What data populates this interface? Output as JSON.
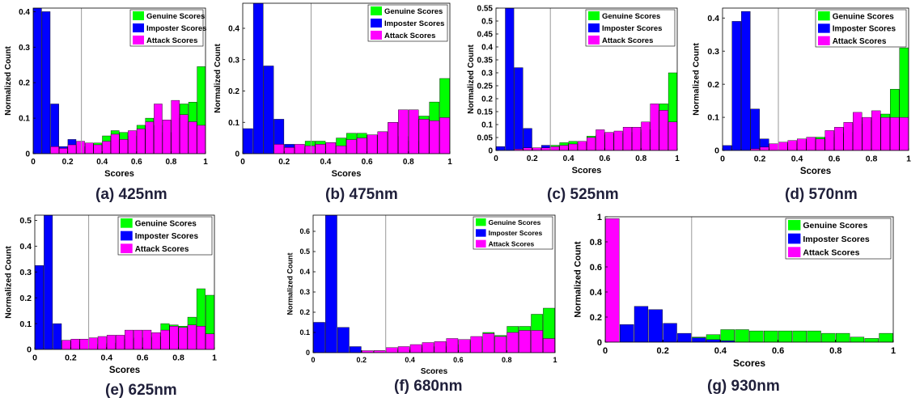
{
  "colors": {
    "genuine": "#00ff00",
    "imposter": "#0000ff",
    "attack": "#ff00ff",
    "threshold": "#999999",
    "edge": "#000000"
  },
  "chart_data": [
    {
      "type": "bar",
      "caption": "(a) 425nm",
      "xlabel": "Scores",
      "ylabel": "Normalized Count",
      "xlim": [
        0,
        1
      ],
      "ylim": [
        0,
        0.41
      ],
      "threshold": 0.28,
      "xticks": [
        0,
        0.2,
        0.4,
        0.6,
        0.8,
        1
      ],
      "xtick_labels": [
        "0",
        "0.2",
        "0.4",
        "0.6",
        "0.8",
        "1"
      ],
      "yticks": [
        0,
        0.1,
        0.2,
        0.3,
        0.4
      ],
      "ytick_labels": [
        "0",
        "0.1",
        "0.2",
        "0.3",
        "0.4"
      ],
      "legend": [
        "Genuine Scores",
        "Imposter Scores",
        "Attack Scores"
      ],
      "legend_position": "top-right",
      "bin_centers": [
        0.025,
        0.075,
        0.125,
        0.175,
        0.225,
        0.275,
        0.325,
        0.375,
        0.425,
        0.475,
        0.525,
        0.575,
        0.625,
        0.675,
        0.725,
        0.775,
        0.825,
        0.875,
        0.925,
        0.975
      ],
      "series": [
        {
          "name": "Genuine Scores",
          "values": [
            0,
            0,
            0,
            0,
            0,
            0.01,
            0.02,
            0.03,
            0.05,
            0.065,
            0.06,
            0.05,
            0.08,
            0.1,
            0.08,
            0.06,
            0.1,
            0.14,
            0.145,
            0.245
          ]
        },
        {
          "name": "Imposter Scores",
          "values": [
            0.41,
            0.4,
            0.14,
            0.02,
            0.04,
            0.02,
            0,
            0,
            0,
            0,
            0,
            0,
            0,
            0,
            0,
            0,
            0,
            0,
            0,
            0
          ]
        },
        {
          "name": "Attack Scores",
          "values": [
            0,
            0,
            0.02,
            0.015,
            0.025,
            0.035,
            0.03,
            0.025,
            0.035,
            0.055,
            0.04,
            0.065,
            0.07,
            0.09,
            0.14,
            0.095,
            0.15,
            0.11,
            0.09,
            0.08
          ]
        }
      ]
    },
    {
      "type": "bar",
      "caption": "(b) 475nm",
      "xlabel": "Scores",
      "ylabel": "Normalized Count",
      "xlim": [
        0,
        1
      ],
      "ylim": [
        0,
        0.48
      ],
      "threshold": 0.33,
      "xticks": [
        0,
        0.2,
        0.4,
        0.6,
        0.8,
        1
      ],
      "xtick_labels": [
        "0",
        "0.2",
        "0.4",
        "0.6",
        "0.8",
        "1"
      ],
      "yticks": [
        0,
        0.1,
        0.2,
        0.3,
        0.4
      ],
      "ytick_labels": [
        "0",
        "0.1",
        "0.2",
        "0.3",
        "0.4"
      ],
      "legend": [
        "Genuine Scores",
        "Imposter Scores",
        "Attack Scores"
      ],
      "legend_position": "top-right",
      "bin_centers": [
        0.025,
        0.075,
        0.125,
        0.175,
        0.225,
        0.275,
        0.325,
        0.375,
        0.425,
        0.475,
        0.525,
        0.575,
        0.625,
        0.675,
        0.725,
        0.775,
        0.825,
        0.875,
        0.925,
        0.975
      ],
      "series": [
        {
          "name": "Genuine Scores",
          "values": [
            0,
            0,
            0,
            0,
            0.01,
            0.02,
            0.04,
            0.04,
            0.035,
            0.05,
            0.065,
            0.065,
            0.06,
            0.07,
            0.1,
            0.055,
            0.04,
            0.12,
            0.165,
            0.24
          ]
        },
        {
          "name": "Imposter Scores",
          "values": [
            0.08,
            0.48,
            0.28,
            0.11,
            0.03,
            0.01,
            0,
            0,
            0,
            0,
            0,
            0,
            0,
            0,
            0,
            0,
            0,
            0,
            0,
            0
          ]
        },
        {
          "name": "Attack Scores",
          "values": [
            0,
            0,
            0,
            0.03,
            0.02,
            0.03,
            0.025,
            0.03,
            0.035,
            0.025,
            0.045,
            0.05,
            0.06,
            0.07,
            0.1,
            0.14,
            0.14,
            0.11,
            0.105,
            0.115
          ]
        }
      ]
    },
    {
      "type": "bar",
      "caption": "(c) 525nm",
      "xlabel": "Scores",
      "ylabel": "Normalized Count",
      "xlim": [
        0,
        1
      ],
      "ylim": [
        0,
        0.55
      ],
      "threshold": 0.3,
      "xticks": [
        0,
        0.2,
        0.4,
        0.6,
        0.8,
        1
      ],
      "xtick_labels": [
        "0",
        "0.2",
        "0.4",
        "0.6",
        "0.8",
        "1"
      ],
      "yticks": [
        0,
        0.05,
        0.1,
        0.15,
        0.2,
        0.25,
        0.3,
        0.35,
        0.4,
        0.45,
        0.5,
        0.55
      ],
      "ytick_labels": [
        "0",
        "0.05",
        "0.1",
        "0.15",
        "0.2",
        "0.25",
        "0.3",
        "0.35",
        "0.4",
        "0.45",
        "0.5",
        "0.55"
      ],
      "legend": [
        "Genuine Scores",
        "Imposter Scores",
        "Attack Scores"
      ],
      "legend_position": "top-right",
      "bin_centers": [
        0.025,
        0.075,
        0.125,
        0.175,
        0.225,
        0.275,
        0.325,
        0.375,
        0.425,
        0.475,
        0.525,
        0.575,
        0.625,
        0.675,
        0.725,
        0.775,
        0.825,
        0.875,
        0.925,
        0.975
      ],
      "series": [
        {
          "name": "Genuine Scores",
          "values": [
            0,
            0,
            0,
            0,
            0,
            0.01,
            0.02,
            0.03,
            0.035,
            0.03,
            0.055,
            0.06,
            0.065,
            0.065,
            0.07,
            0.07,
            0.08,
            0.08,
            0.18,
            0.3
          ]
        },
        {
          "name": "Imposter Scores",
          "values": [
            0.015,
            0.55,
            0.32,
            0.085,
            0.01,
            0.02,
            0,
            0,
            0,
            0,
            0,
            0,
            0,
            0,
            0,
            0,
            0,
            0,
            0,
            0
          ]
        },
        {
          "name": "Attack Scores",
          "values": [
            0,
            0,
            0.005,
            0.01,
            0.01,
            0.01,
            0.015,
            0.02,
            0.025,
            0.035,
            0.05,
            0.08,
            0.07,
            0.075,
            0.09,
            0.09,
            0.11,
            0.18,
            0.155,
            0.11
          ]
        }
      ]
    },
    {
      "type": "bar",
      "caption": "(d) 570nm",
      "xlabel": "Scores",
      "ylabel": "Normalized Count",
      "xlim": [
        0,
        1
      ],
      "ylim": [
        0,
        0.43
      ],
      "threshold": 0.3,
      "xticks": [
        0,
        0.2,
        0.4,
        0.6,
        0.8,
        1
      ],
      "xtick_labels": [
        "0",
        "0.2",
        "0.4",
        "0.6",
        "0.8",
        "1"
      ],
      "yticks": [
        0,
        0.1,
        0.2,
        0.3,
        0.4
      ],
      "ytick_labels": [
        "0",
        "0.1",
        "0.2",
        "0.3",
        "0.4"
      ],
      "legend": [
        "Genuine Scores",
        "Imposter Scores",
        "Attack Scores"
      ],
      "legend_position": "top-right",
      "bin_centers": [
        0.025,
        0.075,
        0.125,
        0.175,
        0.225,
        0.275,
        0.325,
        0.375,
        0.425,
        0.475,
        0.525,
        0.575,
        0.625,
        0.675,
        0.725,
        0.775,
        0.825,
        0.875,
        0.925,
        0.975
      ],
      "series": [
        {
          "name": "Genuine Scores",
          "values": [
            0,
            0,
            0,
            0,
            0,
            0.005,
            0.01,
            0.02,
            0.025,
            0.03,
            0.04,
            0.04,
            0.05,
            0.055,
            0.08,
            0.09,
            0.1,
            0.11,
            0.185,
            0.31
          ]
        },
        {
          "name": "Imposter Scores",
          "values": [
            0.015,
            0.39,
            0.42,
            0.125,
            0.035,
            0.005,
            0,
            0,
            0,
            0,
            0,
            0,
            0,
            0,
            0,
            0,
            0,
            0,
            0,
            0
          ]
        },
        {
          "name": "Attack Scores",
          "values": [
            0,
            0,
            0,
            0.005,
            0.01,
            0.02,
            0.025,
            0.03,
            0.035,
            0.04,
            0.035,
            0.06,
            0.07,
            0.085,
            0.115,
            0.1,
            0.12,
            0.1,
            0.1,
            0.1
          ]
        }
      ]
    },
    {
      "type": "bar",
      "caption": "(e) 625nm",
      "xlabel": "Scores",
      "ylabel": "Normalized Count",
      "xlim": [
        0,
        1
      ],
      "ylim": [
        0,
        0.52
      ],
      "threshold": 0.3,
      "xticks": [
        0,
        0.2,
        0.4,
        0.6,
        0.8,
        1
      ],
      "xtick_labels": [
        "0",
        "0.2",
        "0.4",
        "0.6",
        "0.8",
        "1"
      ],
      "yticks": [
        0,
        0.1,
        0.2,
        0.3,
        0.4,
        0.5
      ],
      "ytick_labels": [
        "0",
        "0.1",
        "0.2",
        "0.3",
        "0.4",
        "0.5"
      ],
      "legend": [
        "Genuine Scores",
        "Imposter Scores",
        "Attack Scores"
      ],
      "legend_position": "top-right",
      "bin_centers": [
        0.025,
        0.075,
        0.125,
        0.175,
        0.225,
        0.275,
        0.325,
        0.375,
        0.425,
        0.475,
        0.525,
        0.575,
        0.625,
        0.675,
        0.725,
        0.775,
        0.825,
        0.875,
        0.925,
        0.975
      ],
      "series": [
        {
          "name": "Genuine Scores",
          "values": [
            0,
            0,
            0,
            0,
            0,
            0,
            0.01,
            0.02,
            0.025,
            0.035,
            0.04,
            0.045,
            0.045,
            0.05,
            0.1,
            0.095,
            0.09,
            0.125,
            0.235,
            0.21
          ]
        },
        {
          "name": "Imposter Scores",
          "values": [
            0.325,
            0.52,
            0.1,
            0.035,
            0.03,
            0.02,
            0,
            0,
            0,
            0,
            0,
            0,
            0,
            0,
            0,
            0,
            0,
            0,
            0,
            0
          ]
        },
        {
          "name": "Attack Scores",
          "values": [
            0,
            0,
            0,
            0.035,
            0.04,
            0.04,
            0.045,
            0.05,
            0.055,
            0.055,
            0.075,
            0.075,
            0.075,
            0.065,
            0.075,
            0.09,
            0.085,
            0.095,
            0.09,
            0.06
          ]
        }
      ]
    },
    {
      "type": "bar",
      "caption": "(f) 680nm",
      "xlabel": "Scores",
      "ylabel": "Normalized Count",
      "xlim": [
        0,
        1
      ],
      "ylim": [
        0,
        0.68
      ],
      "threshold": 0.3,
      "xticks": [
        0,
        0.2,
        0.4,
        0.6,
        0.8,
        1
      ],
      "xtick_labels": [
        "0",
        "0.2",
        "0.4",
        "0.6",
        "0.8",
        "1"
      ],
      "yticks": [
        0,
        0.1,
        0.2,
        0.3,
        0.4,
        0.5,
        0.6
      ],
      "ytick_labels": [
        "0",
        "0.1",
        "0.2",
        "0.3",
        "0.4",
        "0.5",
        "0.6"
      ],
      "legend": [
        "Genuine Scores",
        "Imposter Scores",
        "Attack Scores"
      ],
      "legend_position": "top-right",
      "bin_centers": [
        0.025,
        0.075,
        0.125,
        0.175,
        0.225,
        0.275,
        0.325,
        0.375,
        0.425,
        0.475,
        0.525,
        0.575,
        0.625,
        0.675,
        0.725,
        0.775,
        0.825,
        0.875,
        0.925,
        0.975
      ],
      "series": [
        {
          "name": "Genuine Scores",
          "values": [
            0,
            0,
            0,
            0,
            0,
            0,
            0.01,
            0.015,
            0.02,
            0.03,
            0.03,
            0.04,
            0.06,
            0.065,
            0.1,
            0.085,
            0.13,
            0.13,
            0.19,
            0.22
          ]
        },
        {
          "name": "Imposter Scores",
          "values": [
            0.15,
            0.68,
            0.125,
            0.03,
            0.005,
            0.01,
            0,
            0,
            0,
            0,
            0,
            0,
            0,
            0,
            0,
            0,
            0,
            0,
            0,
            0
          ]
        },
        {
          "name": "Attack Scores",
          "values": [
            0,
            0,
            0,
            0,
            0.01,
            0.01,
            0.025,
            0.03,
            0.04,
            0.05,
            0.055,
            0.07,
            0.065,
            0.08,
            0.095,
            0.08,
            0.1,
            0.11,
            0.11,
            0.07
          ]
        }
      ]
    },
    {
      "type": "bar",
      "caption": "(g) 930nm",
      "xlabel": "Scores",
      "ylabel": "Normalized Count",
      "xlim": [
        0,
        1
      ],
      "ylim": [
        0,
        1.0
      ],
      "threshold": 0.3,
      "xticks": [
        0,
        0.2,
        0.4,
        0.6,
        0.8,
        1
      ],
      "xtick_labels": [
        "0",
        "0.2",
        "0.4",
        "0.6",
        "0.8",
        "1"
      ],
      "yticks": [
        0,
        0.2,
        0.4,
        0.6,
        0.8,
        1
      ],
      "ytick_labels": [
        "0",
        "0.2",
        "0.4",
        "0.6",
        "0.8",
        "1"
      ],
      "legend": [
        "Genuine Scores",
        "Imposter Scores",
        "Attack Scores"
      ],
      "legend_position": "top-right",
      "bin_centers": [
        0.025,
        0.075,
        0.125,
        0.175,
        0.225,
        0.275,
        0.325,
        0.375,
        0.425,
        0.475,
        0.525,
        0.575,
        0.625,
        0.675,
        0.725,
        0.775,
        0.825,
        0.875,
        0.925,
        0.975
      ],
      "series": [
        {
          "name": "Genuine Scores",
          "values": [
            0,
            0,
            0,
            0,
            0.01,
            0.02,
            0.04,
            0.06,
            0.1,
            0.1,
            0.09,
            0.09,
            0.09,
            0.09,
            0.09,
            0.07,
            0.07,
            0.04,
            0.03,
            0.07
          ]
        },
        {
          "name": "Imposter Scores",
          "values": [
            0,
            0.14,
            0.285,
            0.26,
            0.15,
            0.07,
            0.035,
            0.02,
            0.01,
            0,
            0,
            0,
            0,
            0,
            0,
            0,
            0,
            0,
            0,
            0
          ]
        },
        {
          "name": "Attack Scores",
          "values": [
            0.985,
            0,
            0,
            0,
            0,
            0,
            0,
            0,
            0,
            0,
            0,
            0,
            0,
            0,
            0,
            0,
            0,
            0,
            0,
            0
          ]
        }
      ]
    }
  ]
}
